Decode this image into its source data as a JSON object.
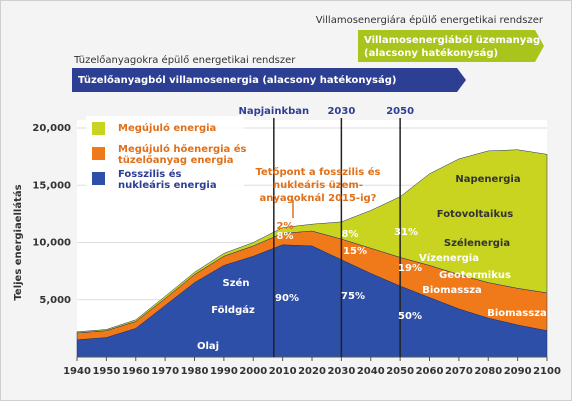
{
  "chart_data": {
    "type": "stacked-area",
    "y_label": "Teljes energiaellátás",
    "banners": [
      {
        "caption": "Villamosenergiára épülő energetikai rendszer",
        "lines": [
          "Villamosenergiából üzemanyag",
          "(alacsony hatékonyság)"
        ],
        "color": "#a9c41d"
      },
      {
        "caption": "Tüzelőanyagokra épülő energetikai rendszer",
        "lines": [
          "Tüzelőanyagból villamosenergia (alacsony hatékonyság)"
        ],
        "color": "#2c3f93"
      }
    ],
    "x": [
      1940,
      1950,
      1960,
      1970,
      1980,
      1990,
      2000,
      2010,
      2020,
      2030,
      2040,
      2050,
      2060,
      2070,
      2080,
      2090,
      2100
    ],
    "series": [
      {
        "name": "Fosszilis és nukleáris energia",
        "color": "#2e4fa8",
        "values": [
          1500,
          1700,
          2500,
          4500,
          6500,
          8000,
          8800,
          9800,
          9700,
          8500,
          7300,
          6200,
          5200,
          4200,
          3400,
          2800,
          2300
        ]
      },
      {
        "name": "Megújuló hőenergia és tüzelőanyag energia",
        "color": "#f07a1a",
        "values": [
          600,
          600,
          600,
          600,
          700,
          800,
          900,
          1000,
          1300,
          1800,
          2200,
          2500,
          2800,
          3000,
          3100,
          3200,
          3300
        ]
      },
      {
        "name": "Megújuló energia",
        "color": "#c8d420",
        "values": [
          100,
          100,
          150,
          200,
          200,
          250,
          300,
          500,
          600,
          1500,
          3300,
          5300,
          8000,
          10100,
          11500,
          12100,
          12100
        ]
      }
    ],
    "markers": [
      {
        "x": 2007,
        "label": "Napjainkban"
      },
      {
        "x": 2030,
        "label": "2030"
      },
      {
        "x": 2050,
        "label": "2050"
      }
    ],
    "peak_note": [
      "Tetőpont a fosszilis és",
      "nukleáris üzem-",
      "anyagoknál 2015-ig?"
    ],
    "annotations": [
      "2%",
      "8%",
      "8%",
      "15%",
      "31%",
      "19%",
      "90%",
      "75%",
      "50%",
      "Szén",
      "Földgáz",
      "Olaj",
      "Napenergia",
      "Fotovoltaikus",
      "Szélenergia",
      "Vízenergia",
      "Geotermikus",
      "Biomassza",
      "Biomassza"
    ],
    "xlim": [
      1940,
      2100
    ],
    "ylim": [
      0,
      20000
    ],
    "xticks": [
      1940,
      1950,
      1960,
      1970,
      1980,
      1990,
      2000,
      2010,
      2020,
      2030,
      2040,
      2050,
      2060,
      2070,
      2080,
      2090,
      2100
    ],
    "yticks": [
      {
        "value": 5000,
        "label": "5,000"
      },
      {
        "value": 10000,
        "label": "10,000"
      },
      {
        "value": 15000,
        "label": "15,000"
      },
      {
        "value": 20000,
        "label": "20,000"
      }
    ]
  }
}
